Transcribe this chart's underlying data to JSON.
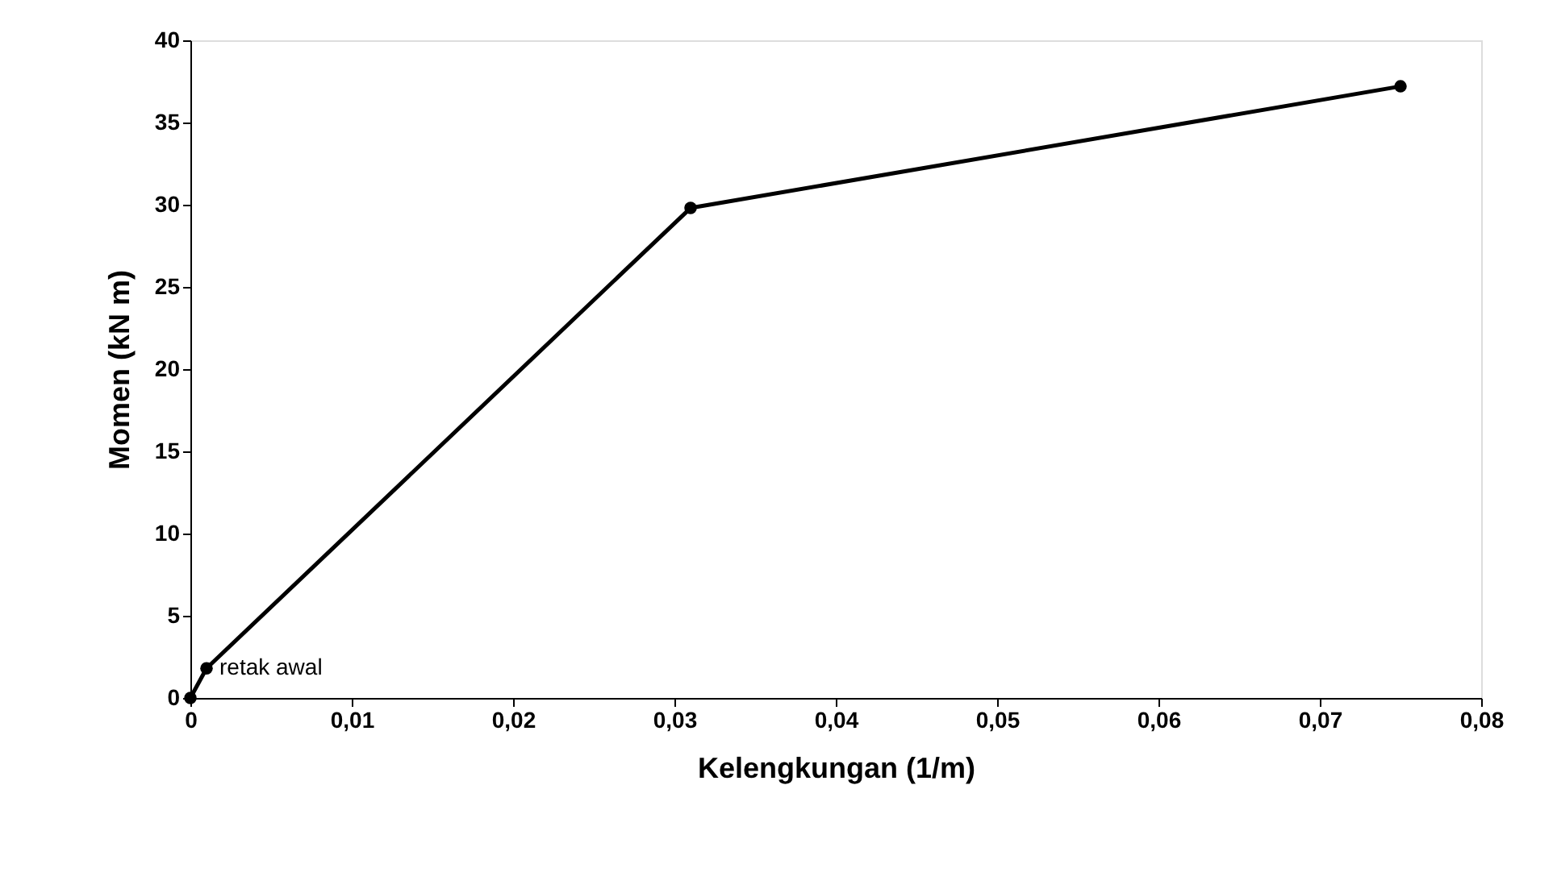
{
  "chart_data": {
    "type": "line",
    "xlabel": "Kelengkungan (1/m)",
    "ylabel": "Momen (kN m)",
    "series": [
      {
        "color": "#000000",
        "x": [
          0,
          0.001,
          0.031,
          0.075
        ],
        "values": [
          0,
          1.8,
          29.8,
          37.2
        ]
      }
    ],
    "xlim": [
      0,
      0.08
    ],
    "xticks": [
      {
        "value": 0,
        "label": "0"
      },
      {
        "value": 0.01,
        "label": "0,01"
      },
      {
        "value": 0.02,
        "label": "0,02"
      },
      {
        "value": 0.03,
        "label": "0,03"
      },
      {
        "value": 0.04,
        "label": "0,04"
      },
      {
        "value": 0.05,
        "label": "0,05"
      },
      {
        "value": 0.06,
        "label": "0,06"
      },
      {
        "value": 0.07,
        "label": "0,07"
      },
      {
        "value": 0.08,
        "label": "0,08"
      }
    ],
    "ylim": [
      0,
      40
    ],
    "yticks": [
      0,
      5,
      10,
      15,
      20,
      25,
      30,
      35,
      40
    ],
    "annotations": [
      {
        "text": "retak awal",
        "x": 0.001,
        "y": 1.8
      }
    ],
    "marker": "circle",
    "line_style": "solid",
    "grid": false
  }
}
